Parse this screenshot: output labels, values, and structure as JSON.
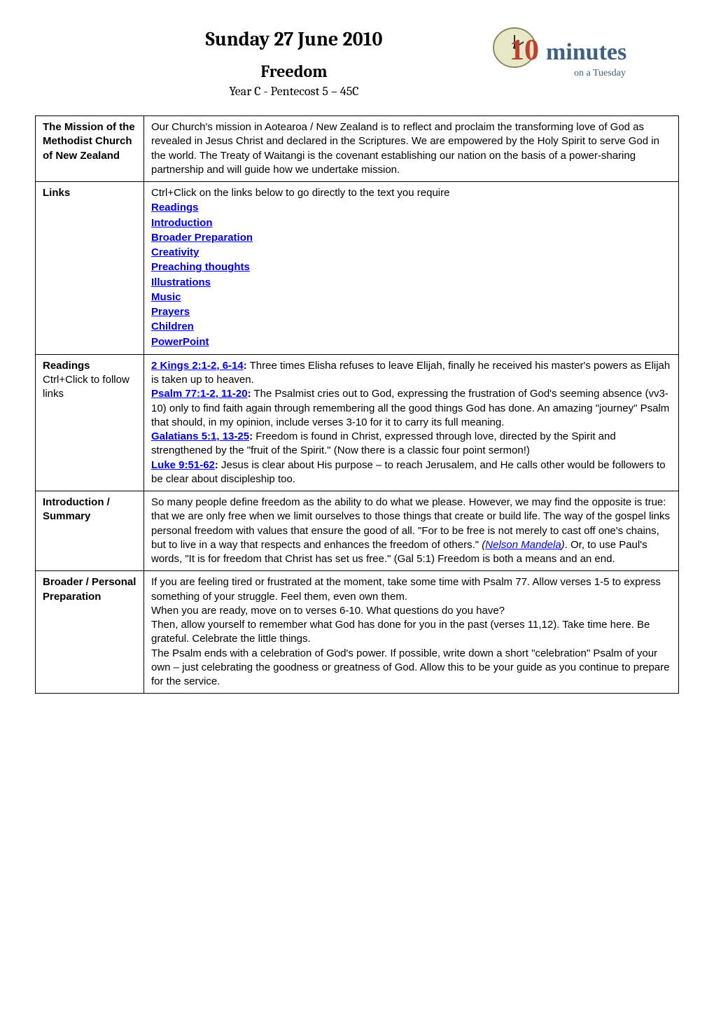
{
  "header": {
    "title": "Sunday 27 June 2010",
    "subtitle": "Freedom",
    "year_line": "Year C - Pentecost 5 – 45C",
    "logo_number": "10",
    "logo_word": "minutes",
    "logo_tagline": "on a Tuesday"
  },
  "rows": [
    {
      "label_html": "<b>The Mission of the Methodist Church of New Zealand</b>",
      "content_html": "Our Church's mission in Aotearoa / New Zealand is to reflect and proclaim the transforming love of God as revealed in Jesus Christ and declared in the Scriptures.  We are empowered by the Holy Spirit to serve God in the world.  The Treaty of Waitangi is the covenant establishing our nation on the basis of a power-sharing partnership and will guide how we undertake mission."
    },
    {
      "label_html": "<b>Links</b>",
      "content_html": "Ctrl+Click on the links below to go directly to the text you require<div class=\"link-list\"><div><span class=\"link bold\">Readings</span></div><div><span class=\"link bold\">Introduction</span></div><div><span class=\"link bold\">Broader Preparation</span></div><div><span class=\"link bold\">Creativity</span></div><div><span class=\"link bold\">Preaching thoughts</span></div><div><span class=\"link bold\">Illustrations</span></div><div><span class=\"link bold\">Music</span></div><div><span class=\"link bold\">Prayers</span></div><div><span class=\"link bold\">Children</span></div><div><span class=\"link bold\">PowerPoint</span></div></div>"
    },
    {
      "label_html": "<b>Readings</b><br><span class=\"sub\">Ctrl+Click to follow links</span>",
      "content_html": "<span class=\"link bold\">2 Kings 2:1-2, 6-14</span><b>:</b> Three times Elisha refuses to leave Elijah, finally he received his master's powers as Elijah is taken up to heaven.<br><span class=\"link bold\">Psalm 77:1-2, 11-20</span><b>:</b> The Psalmist cries out to God, expressing the frustration of God's seeming absence (vv3-10) only to find faith again through remembering all the good things God has done. An amazing \"journey\" Psalm that should, in my opinion, include verses 3-10 for it to carry its full meaning.<br><span class=\"link bold\">Galatians 5:1, 13-25</span><b>:</b> Freedom is found in Christ, expressed through love, directed by the Spirit and strengthened by the \"fruit of the Spirit.\"  (Now there is a classic four point sermon!)<br><span class=\"link bold\">Luke 9:51-62</span><b>:</b> Jesus is clear about His purpose – to reach Jerusalem, and He calls other would be followers to be clear about discipleship too."
    },
    {
      "label_html": "<b>Introduction / Summary</b>",
      "content_html": "So many people define freedom as the ability to do what we please.  However, we may find the opposite is true: that we are only free when we limit ourselves to those things that create or build life.  The way of the gospel links personal freedom with values that ensure the good of all.  \"For to be free is not merely to cast off one's chains, but to live in a way that respects and enhances the freedom of others.\"  <span class=\"italic\">(<span class=\"link\">Nelson Mandela</span>)</span>.  Or, to use Paul's words, \"It is for freedom that Christ has set us free.\" (Gal 5:1)  Freedom is both a means and an end."
    },
    {
      "label_html": "<b>Broader / Personal Preparation</b>",
      "content_html": "If you are feeling tired or frustrated at the moment, take some time with Psalm 77.  Allow verses 1-5 to express something of your struggle.  Feel them, even own them.<br>When you are ready, move on to verses 6-10.  What questions do you have?<br>Then, allow yourself to remember what God has done for you in the past (verses 11,12).  Take time here.  Be grateful.  Celebrate the little things.<br>The Psalm ends with a celebration of God's power.  If possible, write down a short \"celebration\" Psalm of your own – just celebrating the goodness or greatness of God.  Allow this to be your guide as you continue to prepare for the service."
    }
  ],
  "colors": {
    "link": "#0000ee",
    "border": "#000000",
    "logo_bg": "#e8e8c8",
    "logo_number": "#c04030",
    "logo_text": "#406080"
  }
}
